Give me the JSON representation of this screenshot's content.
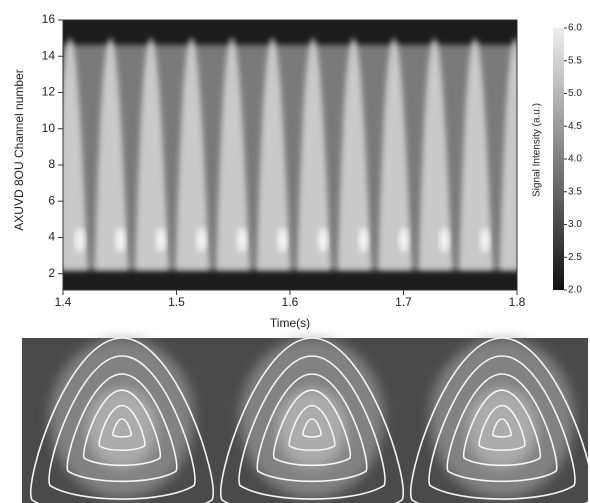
{
  "chart_data": {
    "type": "heatmap",
    "xlabel": "Time(s)",
    "ylabel": "AXUVD 8OU Channel number",
    "xlim": [
      1.4,
      1.8
    ],
    "xticks": [
      1.4,
      1.5,
      1.6,
      1.7,
      1.8
    ],
    "ylim": [
      1.1,
      16
    ],
    "yticks": [
      2,
      4,
      6,
      8,
      10,
      12,
      14,
      16
    ],
    "colorbar": {
      "label": "Signal Intensity (a.u.)",
      "lim": [
        2,
        6
      ],
      "ticks": [
        {
          "value": 2,
          "label": "2.0"
        },
        {
          "value": 2.5,
          "label": "2.5"
        },
        {
          "value": 3,
          "label": "3.0"
        },
        {
          "value": 3.5,
          "label": "3.5"
        },
        {
          "value": 4,
          "label": "4.0"
        },
        {
          "value": 4.5,
          "label": "4.5"
        },
        {
          "value": 5,
          "label": "5.0"
        },
        {
          "value": 5.5,
          "label": "5.5"
        },
        {
          "value": 6,
          "label": "6.0"
        }
      ]
    }
  }
}
